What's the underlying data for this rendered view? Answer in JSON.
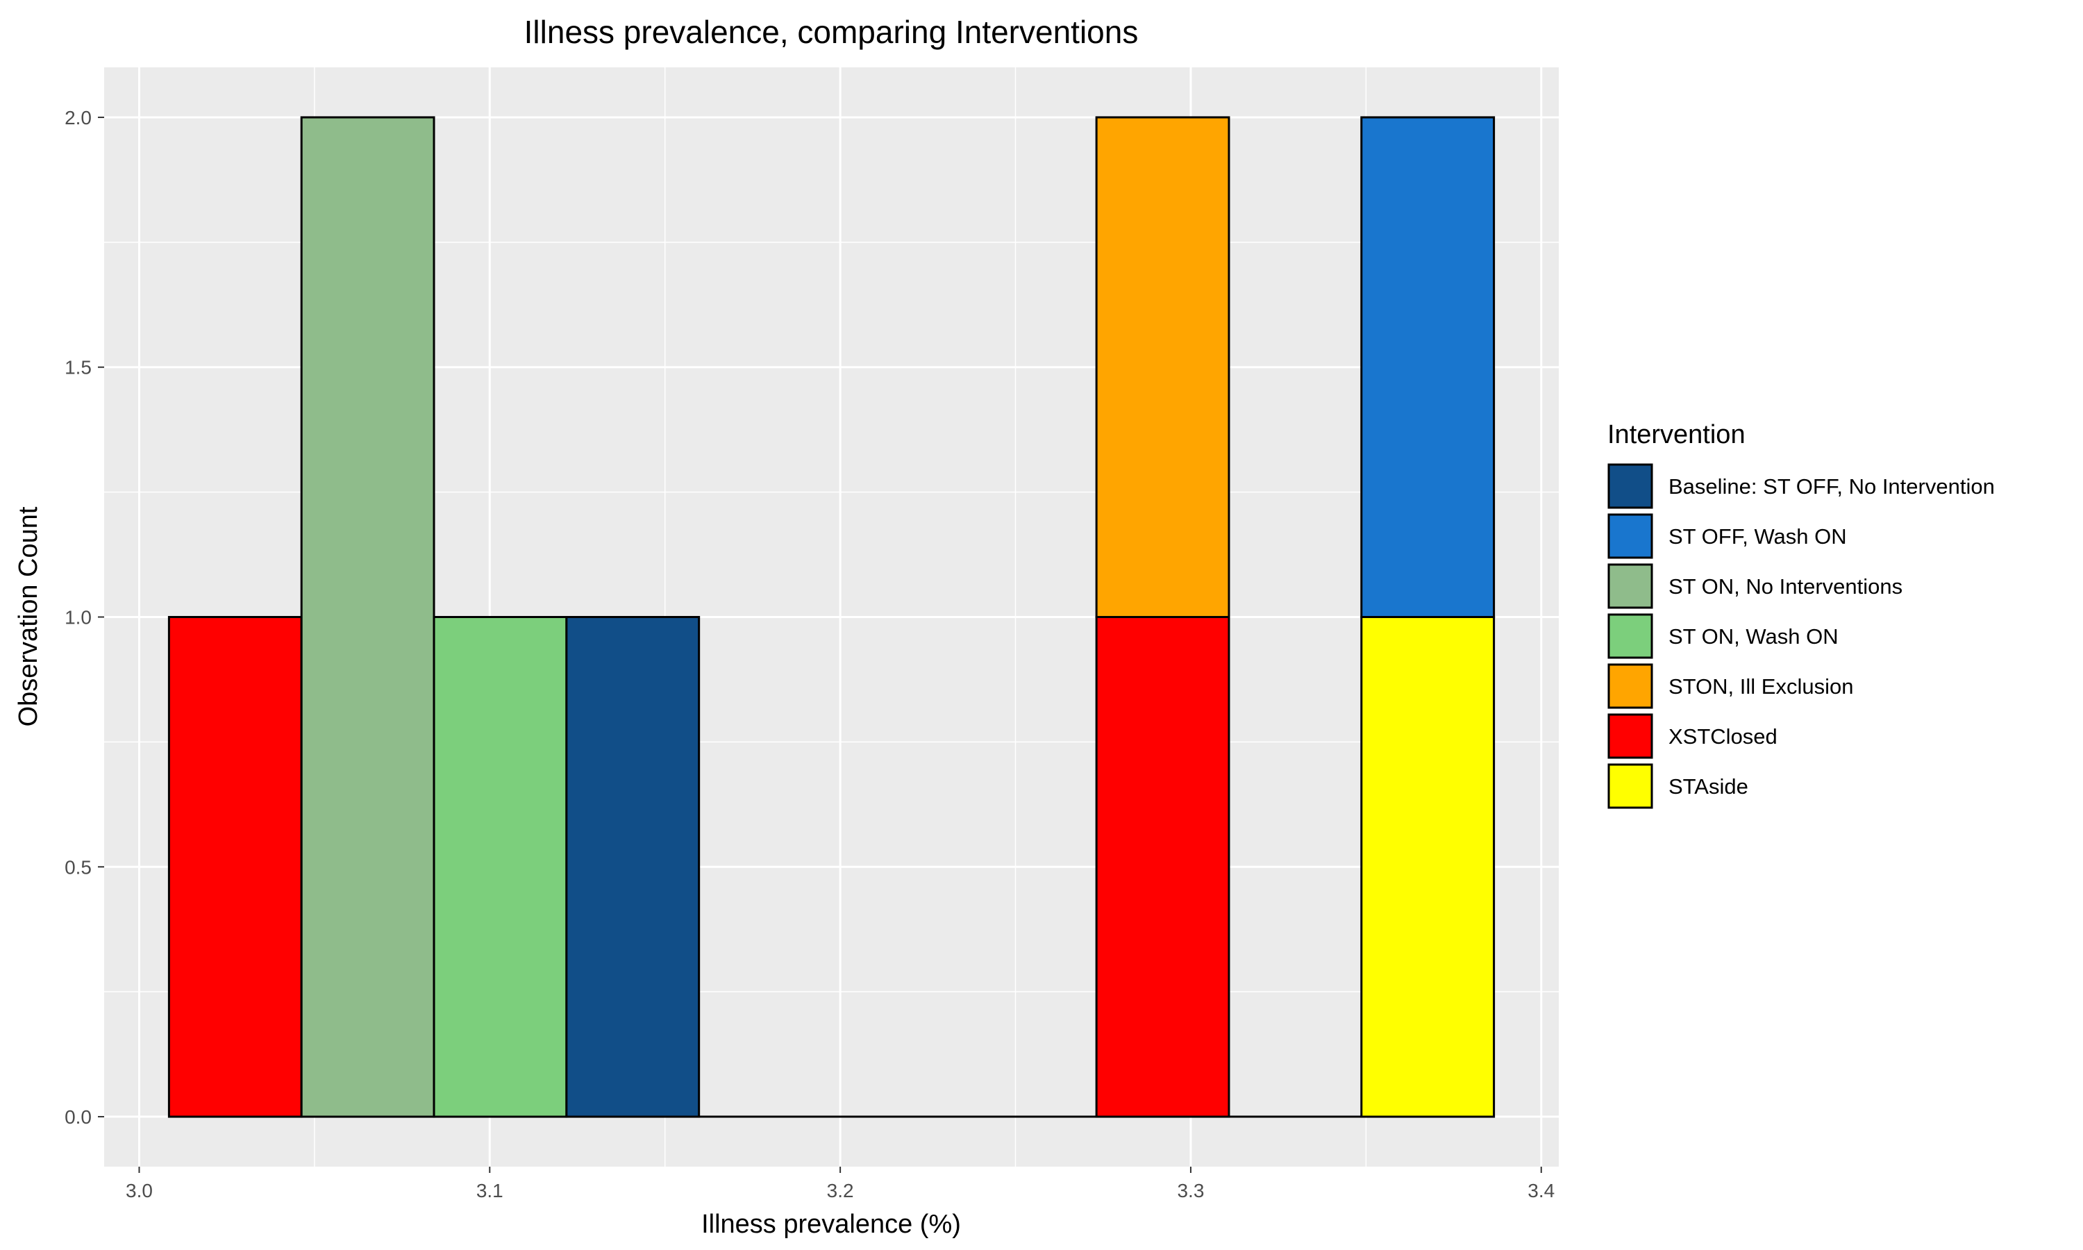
{
  "chart_data": {
    "type": "bar",
    "title": "Illness prevalence, comparing Interventions",
    "xlabel": "Illness prevalence (%)",
    "ylabel": "Observation Count",
    "xlim": [
      2.99,
      3.405
    ],
    "ylim": [
      -0.1,
      2.1
    ],
    "x_ticks": [
      "3.0",
      "3.1",
      "3.2",
      "3.3",
      "3.4"
    ],
    "y_ticks": [
      "0.0",
      "0.5",
      "1.0",
      "1.5",
      "2.0"
    ],
    "grid": true,
    "legend_position": "right",
    "legend_title": "Intervention",
    "series": [
      {
        "name": "Baseline: ST OFF, No Intervention",
        "color": "#114E88"
      },
      {
        "name": "ST OFF, Wash ON",
        "color": "#1976CE"
      },
      {
        "name": "ST ON, No Interventions",
        "color": "#8FBC8B"
      },
      {
        "name": "ST ON, Wash ON",
        "color": "#7CCF7C"
      },
      {
        "name": "STON, Ill Exclusion",
        "color": "#FFA500"
      },
      {
        "name": "XSTClosed",
        "color": "#FF0000"
      },
      {
        "name": "STAside",
        "color": "#FFFF00"
      }
    ],
    "bins": [
      {
        "x_start": 3.0085,
        "x_end": 3.0463,
        "segments": [
          {
            "series": "XSTClosed",
            "count": 1
          }
        ]
      },
      {
        "x_start": 3.0463,
        "x_end": 3.0841,
        "segments": [
          {
            "series": "ST ON, No Interventions",
            "count": 2
          }
        ]
      },
      {
        "x_start": 3.0841,
        "x_end": 3.1219,
        "segments": [
          {
            "series": "ST ON, Wash ON",
            "count": 1
          }
        ]
      },
      {
        "x_start": 3.1219,
        "x_end": 3.1597,
        "segments": [
          {
            "series": "Baseline: ST OFF, No Intervention",
            "count": 1
          }
        ]
      },
      {
        "x_start": 3.1597,
        "x_end": 3.1975,
        "segments": []
      },
      {
        "x_start": 3.1975,
        "x_end": 3.2353,
        "segments": []
      },
      {
        "x_start": 3.2353,
        "x_end": 3.2731,
        "segments": []
      },
      {
        "x_start": 3.2731,
        "x_end": 3.3109,
        "segments": [
          {
            "series": "XSTClosed",
            "count": 1
          },
          {
            "series": "STON, Ill Exclusion",
            "count": 1
          }
        ]
      },
      {
        "x_start": 3.3109,
        "x_end": 3.3487,
        "segments": []
      },
      {
        "x_start": 3.3487,
        "x_end": 3.3865,
        "segments": [
          {
            "series": "STAside",
            "count": 1
          },
          {
            "series": "ST OFF, Wash ON",
            "count": 1
          }
        ]
      }
    ]
  }
}
